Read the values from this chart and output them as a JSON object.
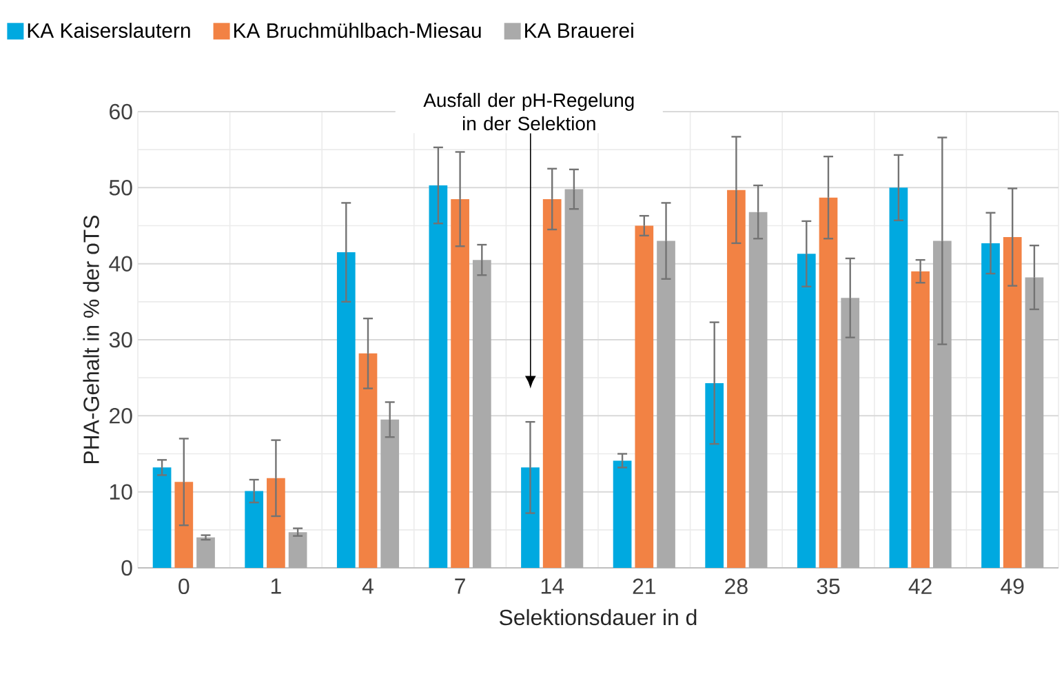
{
  "chart_data": {
    "type": "bar",
    "xlabel": "Selektionsdauer  in d",
    "ylabel": "PHA-Gehalt in % der oTS",
    "categories": [
      "0",
      "1",
      "4",
      "7",
      "14",
      "21",
      "28",
      "35",
      "42",
      "49"
    ],
    "series": [
      {
        "name": "KA Kaiserslautern",
        "color": "#00a9e0",
        "values": [
          13.2,
          10.1,
          41.5,
          50.3,
          13.2,
          14.1,
          24.3,
          41.3,
          50,
          42.7
        ],
        "errors": [
          1,
          1.5,
          6.5,
          5,
          6,
          0.9,
          8,
          4.3,
          4.3,
          4
        ]
      },
      {
        "name": "KA Bruchmühlbach-Miesau",
        "color": "#f28244",
        "values": [
          11.3,
          11.8,
          28.2,
          48.5,
          48.5,
          45,
          49.7,
          48.7,
          39,
          43.5
        ],
        "errors": [
          5.7,
          5,
          4.6,
          6.2,
          4,
          1.3,
          7,
          5.4,
          1.5,
          6.4
        ]
      },
      {
        "name": "KA Brauerei",
        "color": "#aaaaaa",
        "values": [
          4,
          4.7,
          19.5,
          40.5,
          49.8,
          43,
          46.8,
          35.5,
          43,
          38.2
        ],
        "errors": [
          0.3,
          0.5,
          2.3,
          2,
          2.6,
          5,
          3.5,
          5.2,
          13.6,
          4.2
        ]
      }
    ],
    "ylim": [
      0,
      60
    ],
    "yticks": [
      0,
      10,
      20,
      30,
      40,
      50,
      60
    ],
    "grid": true,
    "legend": "top",
    "annotations": [
      "Ausfall der pH-Regelung in der Selektion"
    ]
  }
}
